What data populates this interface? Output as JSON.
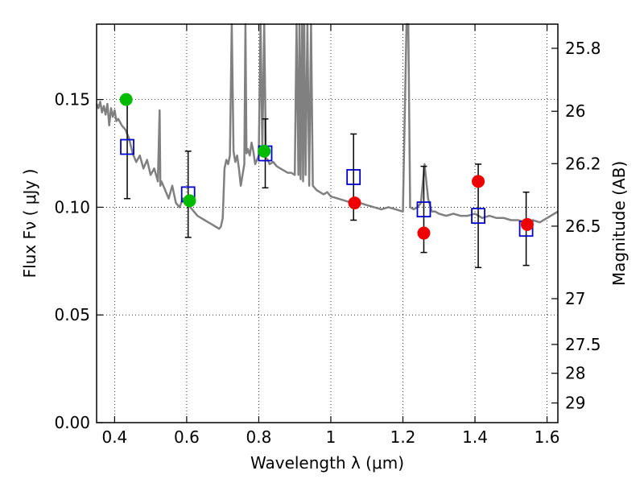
{
  "chart_data": {
    "type": "scatter",
    "xlabel": "Wavelength  λ (μm)",
    "ylabel": "Flux  Fν  ( μJy )",
    "y2label": "Magnitude (AB)",
    "xlim": [
      0.35,
      1.63
    ],
    "ylim": [
      0.0,
      0.185
    ],
    "x_ticks": [
      0.4,
      0.6,
      0.8,
      1.0,
      1.2,
      1.4,
      1.6
    ],
    "x_tick_labels": [
      "0.4",
      "0.6",
      "0.8",
      "1",
      "1.2",
      "1.4",
      "1.6"
    ],
    "y_ticks": [
      0.0,
      0.05,
      0.1,
      0.15
    ],
    "y_tick_labels": [
      "0.00",
      "0.05",
      "0.10",
      "0.15"
    ],
    "y2_ticks": [
      25.8,
      26.0,
      26.2,
      26.5,
      27.0,
      27.5,
      28.0,
      29.0
    ],
    "y2_tick_labels": [
      "25.8",
      "26",
      "26.2",
      "26.5",
      "27",
      "27.5",
      "28",
      "29"
    ],
    "grid": true,
    "colors": {
      "model": "#808080",
      "observed": "#0000cc",
      "green": "#00bb00",
      "red": "#ee0000",
      "errorbar": "#000000"
    },
    "series": [
      {
        "kind": "line",
        "x": [
          0.35,
          0.355,
          0.36,
          0.365,
          0.37,
          0.375,
          0.38,
          0.385,
          0.39,
          0.395,
          0.4,
          0.405,
          0.41,
          0.42,
          0.43,
          0.44,
          0.45,
          0.46,
          0.47,
          0.48,
          0.49,
          0.5,
          0.51,
          0.52,
          0.525,
          0.527,
          0.53,
          0.54,
          0.55,
          0.56,
          0.57,
          0.58,
          0.59,
          0.6,
          0.61,
          0.62,
          0.63,
          0.64,
          0.65,
          0.66,
          0.67,
          0.68,
          0.69,
          0.695,
          0.7,
          0.705,
          0.71,
          0.715,
          0.72,
          0.725,
          0.73,
          0.735,
          0.74,
          0.745,
          0.75,
          0.755,
          0.76,
          0.763,
          0.766,
          0.77,
          0.775,
          0.78,
          0.785,
          0.79,
          0.8,
          0.805,
          0.81,
          0.815,
          0.82,
          0.825,
          0.83,
          0.84,
          0.85,
          0.86,
          0.87,
          0.88,
          0.89,
          0.9,
          0.905,
          0.91,
          0.913,
          0.916,
          0.92,
          0.923,
          0.926,
          0.93,
          0.935,
          0.94,
          0.945,
          0.95,
          0.96,
          0.97,
          0.98,
          0.99,
          1.0,
          1.02,
          1.04,
          1.06,
          1.08,
          1.1,
          1.12,
          1.14,
          1.16,
          1.18,
          1.2,
          1.21,
          1.215,
          1.22,
          1.23,
          1.24,
          1.25,
          1.26,
          1.27,
          1.28,
          1.29,
          1.3,
          1.32,
          1.34,
          1.36,
          1.38,
          1.4,
          1.42,
          1.44,
          1.46,
          1.48,
          1.5,
          1.52,
          1.54,
          1.56,
          1.58,
          1.6,
          1.62,
          1.63
        ],
        "y": [
          0.148,
          0.146,
          0.149,
          0.144,
          0.147,
          0.143,
          0.148,
          0.138,
          0.146,
          0.142,
          0.145,
          0.14,
          0.141,
          0.138,
          0.136,
          0.132,
          0.125,
          0.121,
          0.124,
          0.118,
          0.122,
          0.115,
          0.118,
          0.112,
          0.145,
          0.11,
          0.112,
          0.108,
          0.104,
          0.11,
          0.102,
          0.1,
          0.104,
          0.102,
          0.1,
          0.098,
          0.096,
          0.095,
          0.094,
          0.093,
          0.092,
          0.091,
          0.09,
          0.091,
          0.095,
          0.118,
          0.122,
          0.12,
          0.124,
          0.185,
          0.126,
          0.121,
          0.124,
          0.118,
          0.11,
          0.115,
          0.12,
          0.185,
          0.125,
          0.127,
          0.124,
          0.13,
          0.126,
          0.12,
          0.124,
          0.185,
          0.127,
          0.185,
          0.123,
          0.122,
          0.12,
          0.121,
          0.119,
          0.118,
          0.117,
          0.116,
          0.116,
          0.115,
          0.185,
          0.115,
          0.185,
          0.113,
          0.185,
          0.112,
          0.185,
          0.115,
          0.185,
          0.11,
          0.185,
          0.11,
          0.108,
          0.107,
          0.106,
          0.107,
          0.105,
          0.104,
          0.103,
          0.102,
          0.102,
          0.101,
          0.1,
          0.099,
          0.1,
          0.099,
          0.098,
          0.185,
          0.185,
          0.1,
          0.099,
          0.1,
          0.102,
          0.12,
          0.104,
          0.098,
          0.098,
          0.097,
          0.096,
          0.097,
          0.096,
          0.096,
          0.097,
          0.095,
          0.096,
          0.095,
          0.095,
          0.094,
          0.094,
          0.093,
          0.094,
          0.093,
          0.095,
          0.097,
          0.098
        ]
      },
      {
        "kind": "points",
        "name": "observed",
        "marker": "open-square",
        "x": [
          0.435,
          0.604,
          0.818,
          1.063,
          1.258,
          1.409,
          1.542
        ],
        "y": [
          0.128,
          0.106,
          0.125,
          0.114,
          0.099,
          0.096,
          0.09
        ],
        "yerr": [
          0.024,
          0.02,
          0.016,
          0.02,
          0.02,
          0.024,
          0.017
        ]
      },
      {
        "kind": "points",
        "name": "green",
        "marker": "filled-circle",
        "x": [
          0.432,
          0.608,
          0.815
        ],
        "y": [
          0.15,
          0.103,
          0.126
        ]
      },
      {
        "kind": "points",
        "name": "red",
        "marker": "filled-circle",
        "x": [
          1.066,
          1.258,
          1.409,
          1.545
        ],
        "y": [
          0.102,
          0.088,
          0.112,
          0.092
        ]
      }
    ]
  }
}
